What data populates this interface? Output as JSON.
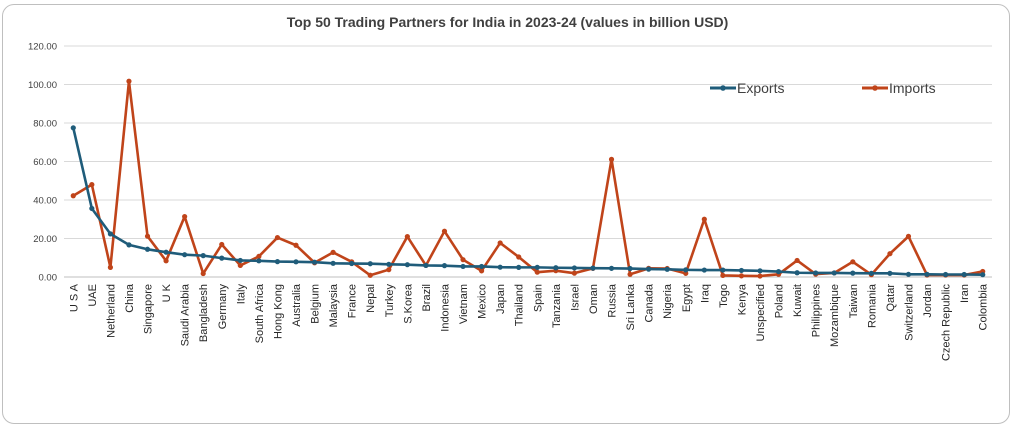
{
  "chart_data": {
    "type": "line",
    "title": "Top 50 Trading Partners for India in 2023-24 (values in billion USD)",
    "xlabel": "",
    "ylabel": "",
    "ylim": [
      0,
      120
    ],
    "yticks": [
      "0.00",
      "20.00",
      "40.00",
      "60.00",
      "80.00",
      "100.00",
      "120.00"
    ],
    "grid": "horizontal",
    "legend_position": "top-right",
    "categories": [
      "U S A",
      "UAE",
      "Netherland",
      "China",
      "Singapore",
      "U K",
      "Saudi Arabia",
      "Bangladesh",
      "Germany",
      "Italy",
      "South Africa",
      "Hong Kong",
      "Australia",
      "Belgium",
      "Malaysia",
      "France",
      "Nepal",
      "Turkey",
      "S.Korea",
      "Brazil",
      "Indonesia",
      "Vietnam",
      "Mexico",
      "Japan",
      "Thailand",
      "Spain",
      "Tanzania",
      "Israel",
      "Oman",
      "Russia",
      "Sri Lanka",
      "Canada",
      "Nigeria",
      "Egypt",
      "Iraq",
      "Togo",
      "Kenya",
      "Unspecified",
      "Poland",
      "Kuwait",
      "Philippines",
      "Mozambique",
      "Taiwan",
      "Romania",
      "Qatar",
      "Switzerland",
      "Jordan",
      "Czech Republic",
      "Iran",
      "Colombia"
    ],
    "series": [
      {
        "name": "Exports",
        "color": "#1f5c7a",
        "values": [
          77.5,
          35.6,
          22.4,
          16.7,
          14.4,
          12.9,
          11.6,
          11.1,
          9.8,
          8.6,
          8.4,
          8.0,
          7.9,
          7.7,
          7.1,
          7.0,
          6.9,
          6.6,
          6.4,
          6.0,
          5.9,
          5.5,
          5.5,
          5.1,
          5.0,
          5.0,
          4.8,
          4.7,
          4.6,
          4.5,
          4.4,
          4.1,
          4.0,
          3.7,
          3.6,
          3.6,
          3.4,
          3.2,
          2.8,
          2.2,
          2.1,
          2.1,
          2.0,
          1.9,
          1.9,
          1.4,
          1.4,
          1.3,
          1.3,
          1.2
        ]
      },
      {
        "name": "Imports",
        "color": "#c0441a",
        "values": [
          42.2,
          48.0,
          5.0,
          101.7,
          21.2,
          8.4,
          31.4,
          1.8,
          16.9,
          6.0,
          10.7,
          20.5,
          16.5,
          7.4,
          12.8,
          7.9,
          0.9,
          3.8,
          21.0,
          6.0,
          23.8,
          9.0,
          3.2,
          17.7,
          10.4,
          2.5,
          3.3,
          2.0,
          4.5,
          61.1,
          1.4,
          4.5,
          4.4,
          1.9,
          30.0,
          0.8,
          0.6,
          0.5,
          1.4,
          8.6,
          1.5,
          2.1,
          7.9,
          1.2,
          12.1,
          21.1,
          1.0,
          1.0,
          1.0,
          2.9
        ]
      }
    ]
  }
}
